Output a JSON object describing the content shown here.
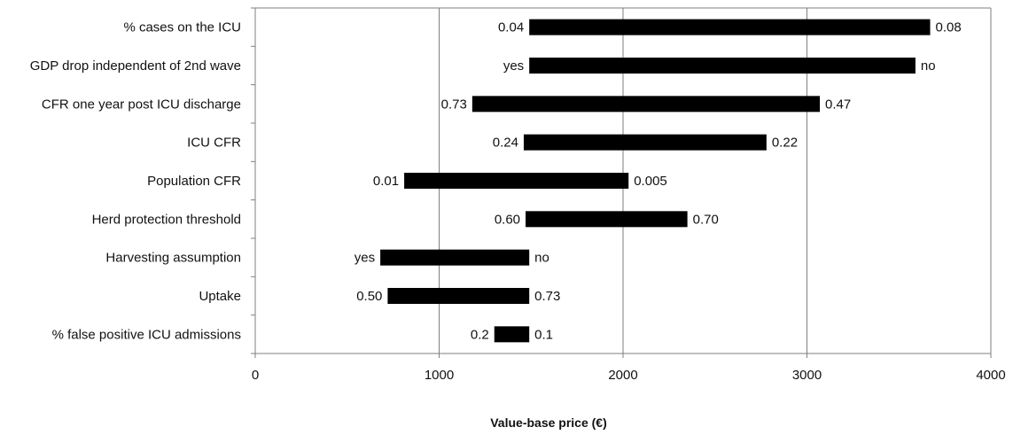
{
  "chart_data": {
    "type": "bar",
    "orientation": "horizontal",
    "subtype": "tornado",
    "xlabel": "Value-base price (€)",
    "xlim": [
      0,
      4000
    ],
    "xticks": [
      0,
      1000,
      2000,
      3000,
      4000
    ],
    "grid": "vertical",
    "base_value": 1490,
    "categories": [
      "% cases on the ICU",
      "GDP drop independent of 2nd wave",
      "CFR one year post ICU discharge",
      "ICU CFR",
      "Population CFR",
      "Herd protection threshold",
      "Harvesting assumption",
      "Uptake",
      "% false positive ICU admissions"
    ],
    "bars": [
      {
        "low": 1490,
        "high": 3670,
        "low_label": "0.04",
        "high_label": "0.08"
      },
      {
        "low": 1490,
        "high": 3590,
        "low_label": "yes",
        "high_label": "no"
      },
      {
        "low": 1180,
        "high": 3070,
        "low_label": "0.73",
        "high_label": "0.47"
      },
      {
        "low": 1460,
        "high": 2780,
        "low_label": "0.24",
        "high_label": "0.22"
      },
      {
        "low": 810,
        "high": 2030,
        "low_label": "0.01",
        "high_label": "0.005"
      },
      {
        "low": 1470,
        "high": 2350,
        "low_label": "0.60",
        "high_label": "0.70"
      },
      {
        "low": 680,
        "high": 1490,
        "low_label": "yes",
        "high_label": "no"
      },
      {
        "low": 720,
        "high": 1490,
        "low_label": "0.50",
        "high_label": "0.73"
      },
      {
        "low": 1300,
        "high": 1490,
        "low_label": "0.2",
        "high_label": "0.1"
      }
    ],
    "bar_color": "#000000",
    "grid_color": "#7f7f7f"
  }
}
